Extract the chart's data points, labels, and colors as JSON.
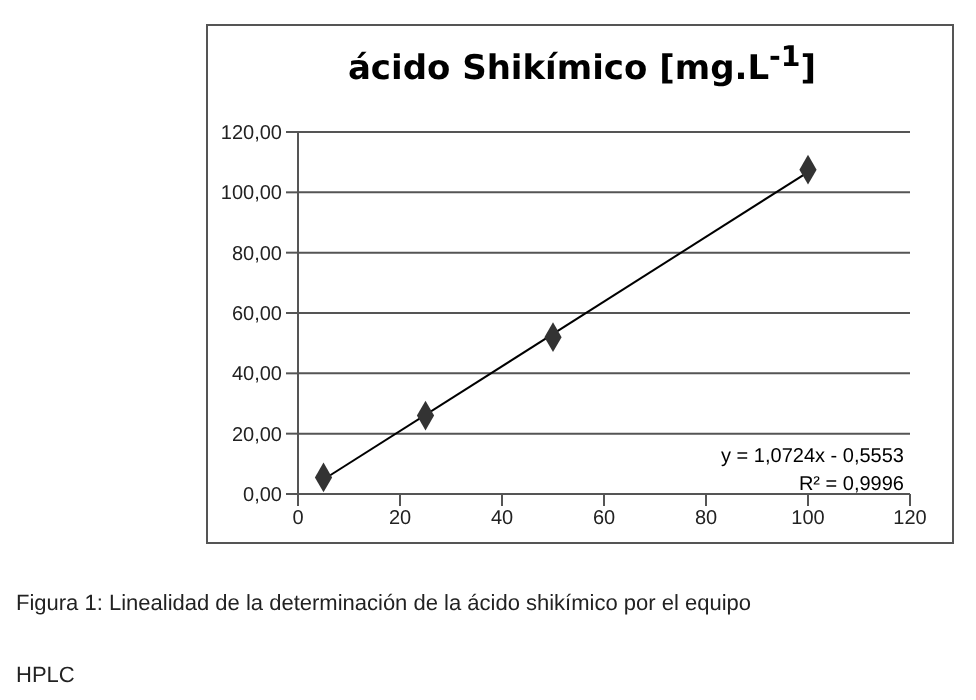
{
  "chart_data": {
    "type": "scatter",
    "title": "ácido Shikímico [mg.L$^{-1}$]",
    "xlim": [
      0,
      120
    ],
    "xticks": [
      0,
      20,
      40,
      60,
      80,
      100,
      120
    ],
    "ylim": [
      0,
      120
    ],
    "yticks": [
      {
        "value": 0,
        "label": "0,00"
      },
      {
        "value": 20,
        "label": "20,00"
      },
      {
        "value": 40,
        "label": "40,00"
      },
      {
        "value": 60,
        "label": "60,00"
      },
      {
        "value": 80,
        "label": "80,00"
      },
      {
        "value": 100,
        "label": "100,00"
      },
      {
        "value": 120,
        "label": "120,00"
      }
    ],
    "grid": "y",
    "marker": "diamond",
    "series": [
      {
        "x": [
          5,
          25,
          50,
          100
        ],
        "values": [
          5.5,
          26,
          52,
          107.5
        ],
        "color": "#333333"
      },
      {
        "type": "line",
        "x": [
          5,
          100
        ],
        "values": [
          4.8,
          106.7
        ],
        "color": "#000000",
        "marker": "none"
      }
    ],
    "annotations": [
      "y = 1,0724x - 0,5553",
      "R² = 0,9996",
      "Figura 1: Linealidad de la determinación de la ácido shikímico por el equipo",
      "HPLC"
    ]
  }
}
